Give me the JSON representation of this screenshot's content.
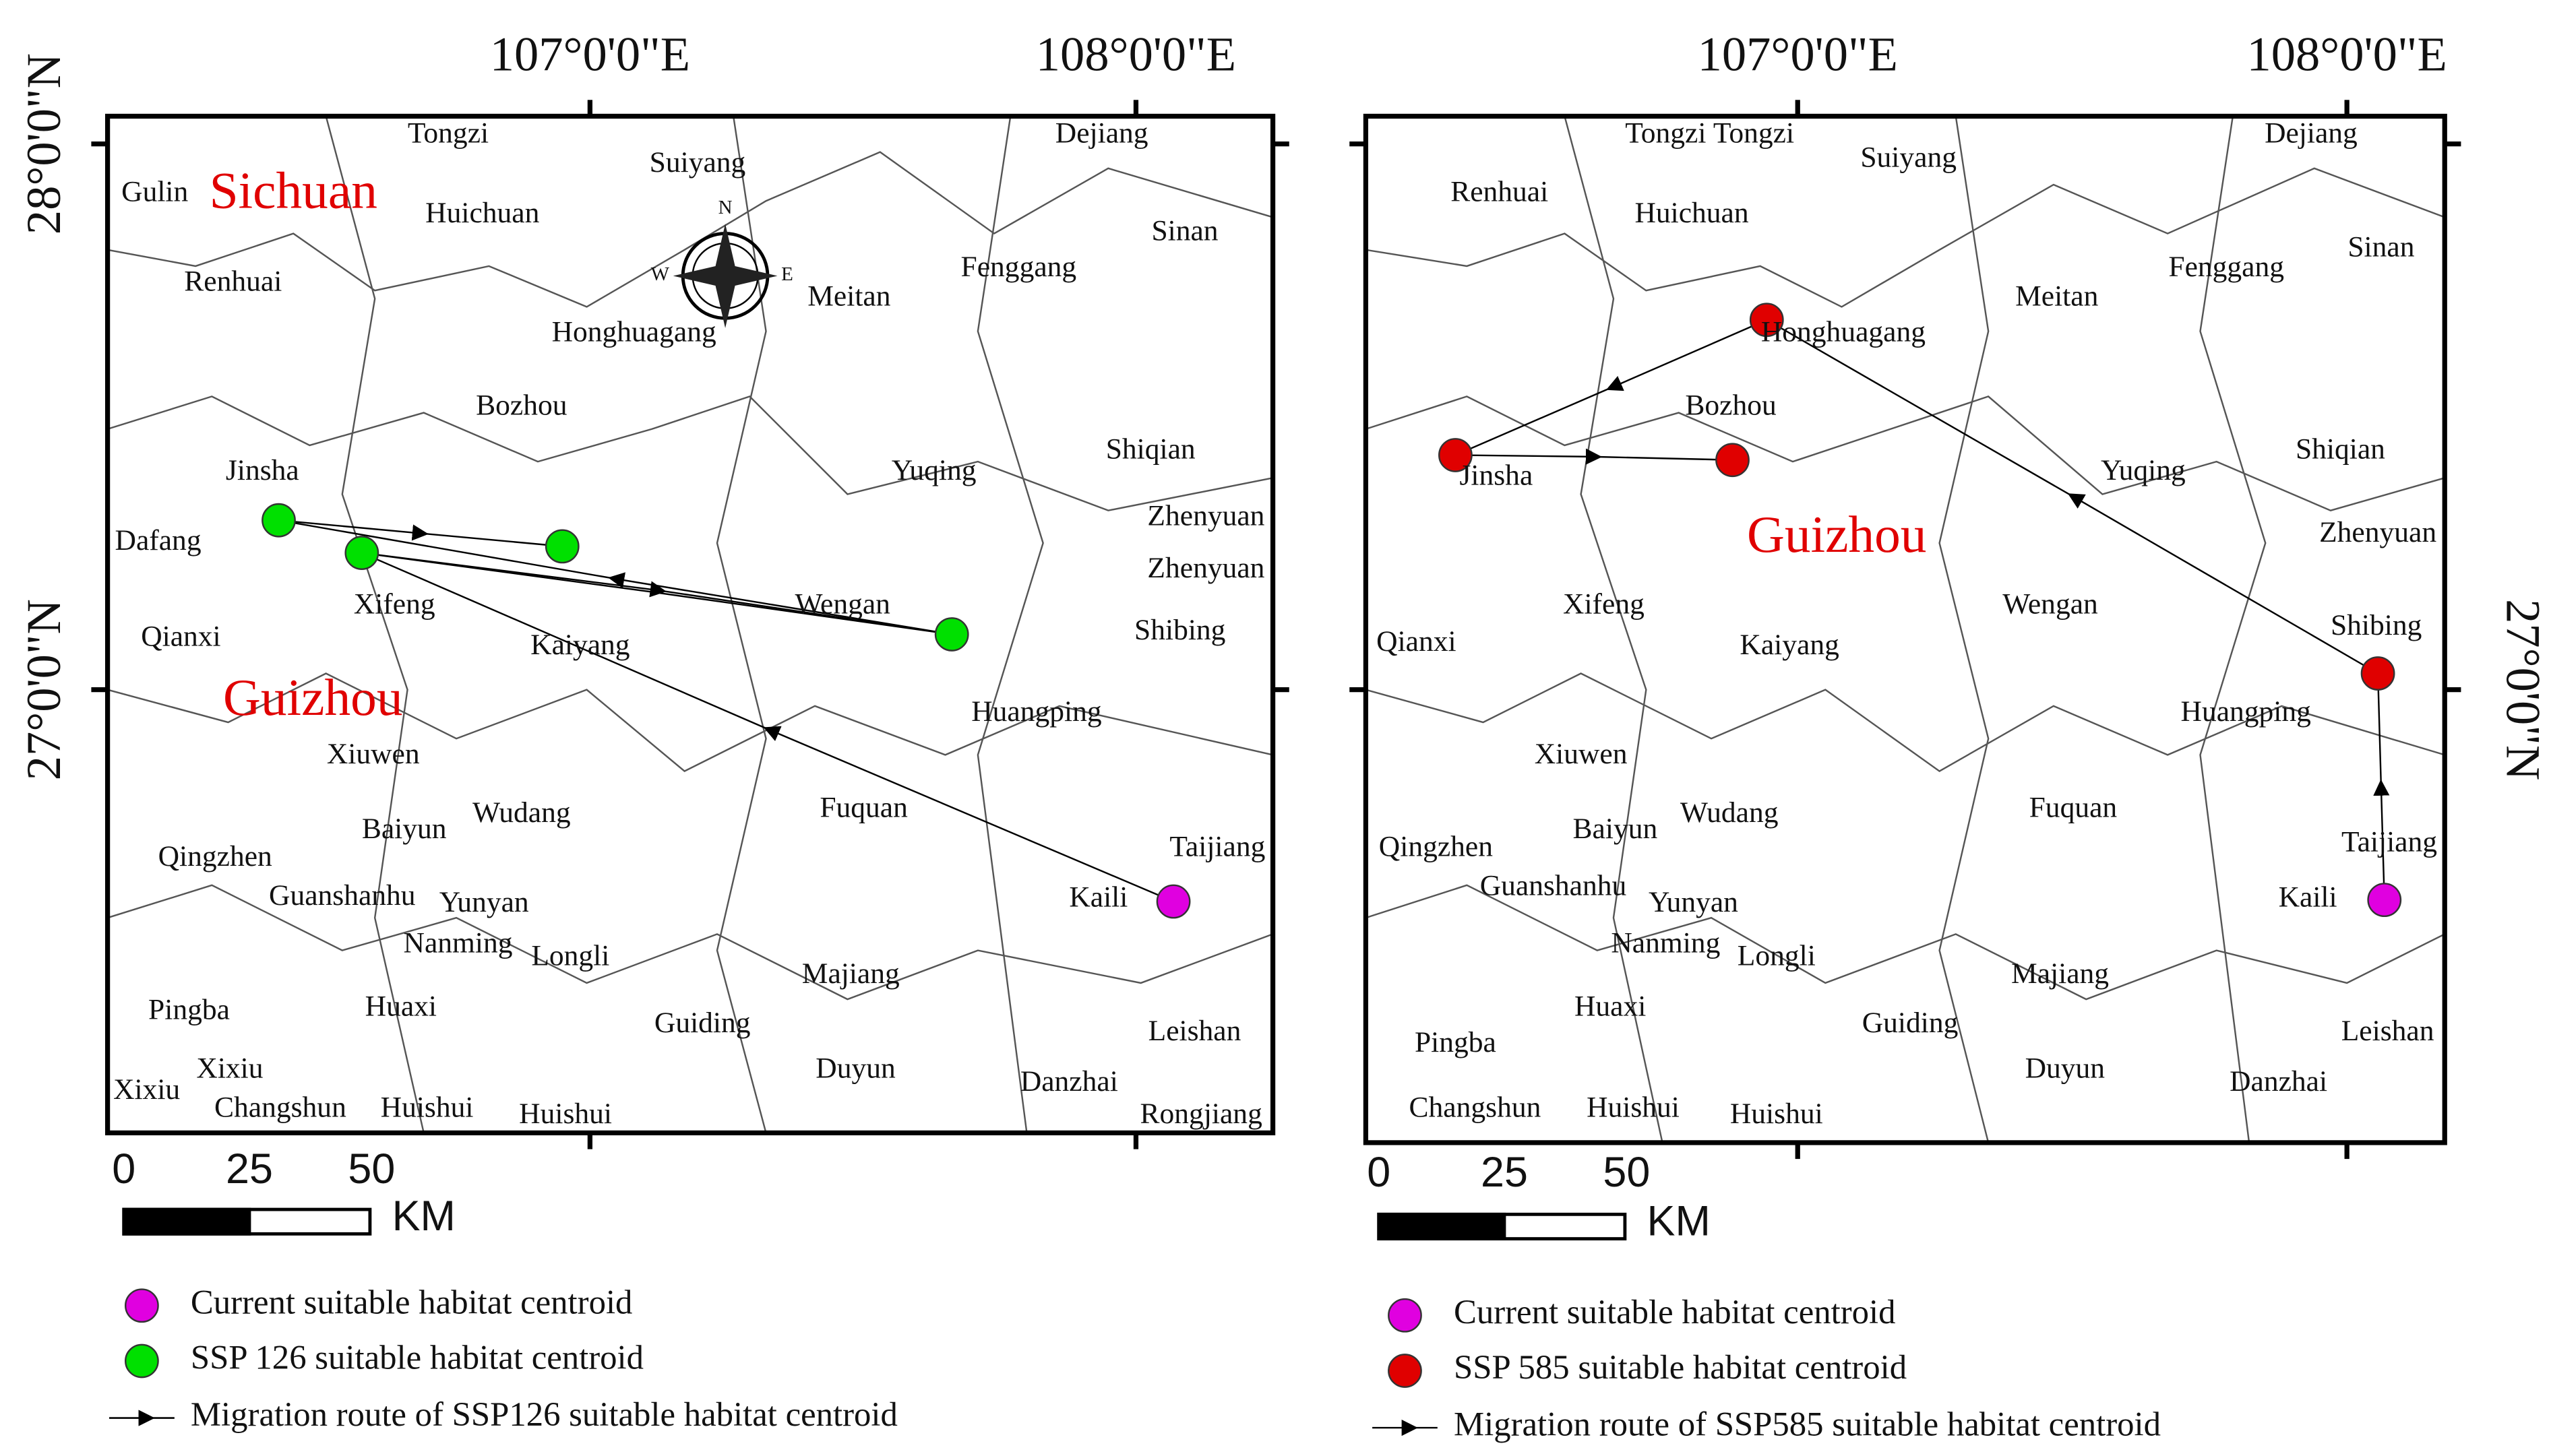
{
  "left_map": {
    "top_labels": [
      "107°0'0\"E",
      "108°0'0\"E"
    ],
    "side_labels": [
      "28°0'0\"N",
      "27°0'0\"N"
    ],
    "regions": [
      "Sichuan",
      "Guizhou"
    ],
    "places": [
      "Tongzi",
      "Suiyang",
      "Dejiang",
      "Gulin",
      "Huichuan",
      "Sinan",
      "Renhuai",
      "Fenggang",
      "Meitan",
      "Honghuagang",
      "Bozhou",
      "Yuqing",
      "Shiqian",
      "Jinsha",
      "Dafang",
      "Zhenyuan",
      "Zhenyuan",
      "Xifeng",
      "Wengan",
      "Qianxi",
      "Kaiyang",
      "Shibing",
      "Huangping",
      "Xiuwen",
      "Fuquan",
      "Wudang",
      "Baiyun",
      "Taijiang",
      "Qingzhen",
      "Guanshanhu",
      "Yunyan",
      "Kaili",
      "Nanming",
      "Longli",
      "Majiang",
      "Pingba",
      "Huaxi",
      "Guiding",
      "Leishan",
      "Xixiu",
      "Duyun",
      "Xixiu",
      "Danzhai",
      "Changshun",
      "Huishui",
      "Huishui",
      "Rongjiang"
    ],
    "compass": {
      "north": "N",
      "west": "W",
      "east": "E"
    },
    "scale": {
      "ticks": [
        0,
        25,
        50
      ],
      "unit": "KM"
    },
    "legend": [
      "Current suitable habitat centroid",
      "SSP 126 suitable habitat centroid",
      "Migration route of SSP126 suitable habitat centroid"
    ]
  },
  "right_map": {
    "top_labels": [
      "107°0'0\"E",
      "108°0'0\"E"
    ],
    "side_labels": [
      "27°0'0\"N"
    ],
    "regions": [
      "Guizhou"
    ],
    "places": [
      "Tongzi",
      "Tongzi",
      "Suiyang",
      "Dejiang",
      "Renhuai",
      "Huichuan",
      "Sinan",
      "Fenggang",
      "Meitan",
      "Honghuagang",
      "Bozhou",
      "Yuqing",
      "Shiqian",
      "Jinsha",
      "Zhenyuan",
      "Xifeng",
      "Wengan",
      "Shibing",
      "Qianxi",
      "Kaiyang",
      "Huangping",
      "Xiuwen",
      "Fuquan",
      "Wudang",
      "Baiyun",
      "Taijiang",
      "Qingzhen",
      "Guanshanhu",
      "Yunyan",
      "Kaili",
      "Nanming",
      "Longli",
      "Majiang",
      "Huaxi",
      "Guiding",
      "Leishan",
      "Pingba",
      "Duyun",
      "Danzhai",
      "Changshun",
      "Huishui",
      "Huishui"
    ],
    "scale": {
      "ticks": [
        0,
        25,
        50
      ],
      "unit": "KM"
    },
    "legend": [
      "Current suitable habitat centroid",
      "SSP 585 suitable habitat centroid",
      "Migration route of SSP585 suitable habitat centroid"
    ]
  }
}
